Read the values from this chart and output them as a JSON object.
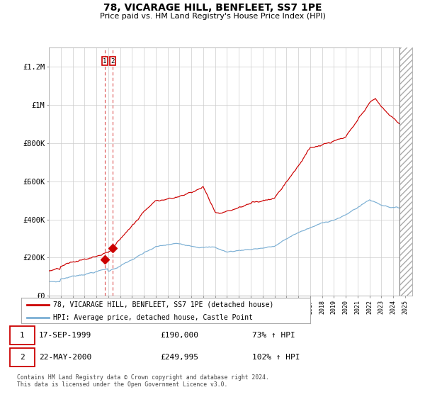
{
  "title": "78, VICARAGE HILL, BENFLEET, SS7 1PE",
  "subtitle": "Price paid vs. HM Land Registry's House Price Index (HPI)",
  "legend_line1": "78, VICARAGE HILL, BENFLEET, SS7 1PE (detached house)",
  "legend_line2": "HPI: Average price, detached house, Castle Point",
  "transaction1_date": "17-SEP-1999",
  "transaction1_price": 190000,
  "transaction1_hpi": "73% ↑ HPI",
  "transaction2_date": "22-MAY-2000",
  "transaction2_price": 249995,
  "transaction2_hpi": "102% ↑ HPI",
  "footnote": "Contains HM Land Registry data © Crown copyright and database right 2024.\nThis data is licensed under the Open Government Licence v3.0.",
  "red_color": "#cc0000",
  "blue_color": "#7bafd4",
  "background_color": "#ffffff",
  "grid_color": "#cccccc",
  "ylim": [
    0,
    1300000
  ],
  "yticks": [
    0,
    200000,
    400000,
    600000,
    800000,
    1000000,
    1200000
  ],
  "ytick_labels": [
    "£0",
    "£200K",
    "£400K",
    "£600K",
    "£800K",
    "£1M",
    "£1.2M"
  ],
  "transaction1_x": 1999.71,
  "transaction2_x": 2000.39,
  "hatch_start": 2024.5,
  "xmin": 1995.0,
  "xmax": 2025.6
}
